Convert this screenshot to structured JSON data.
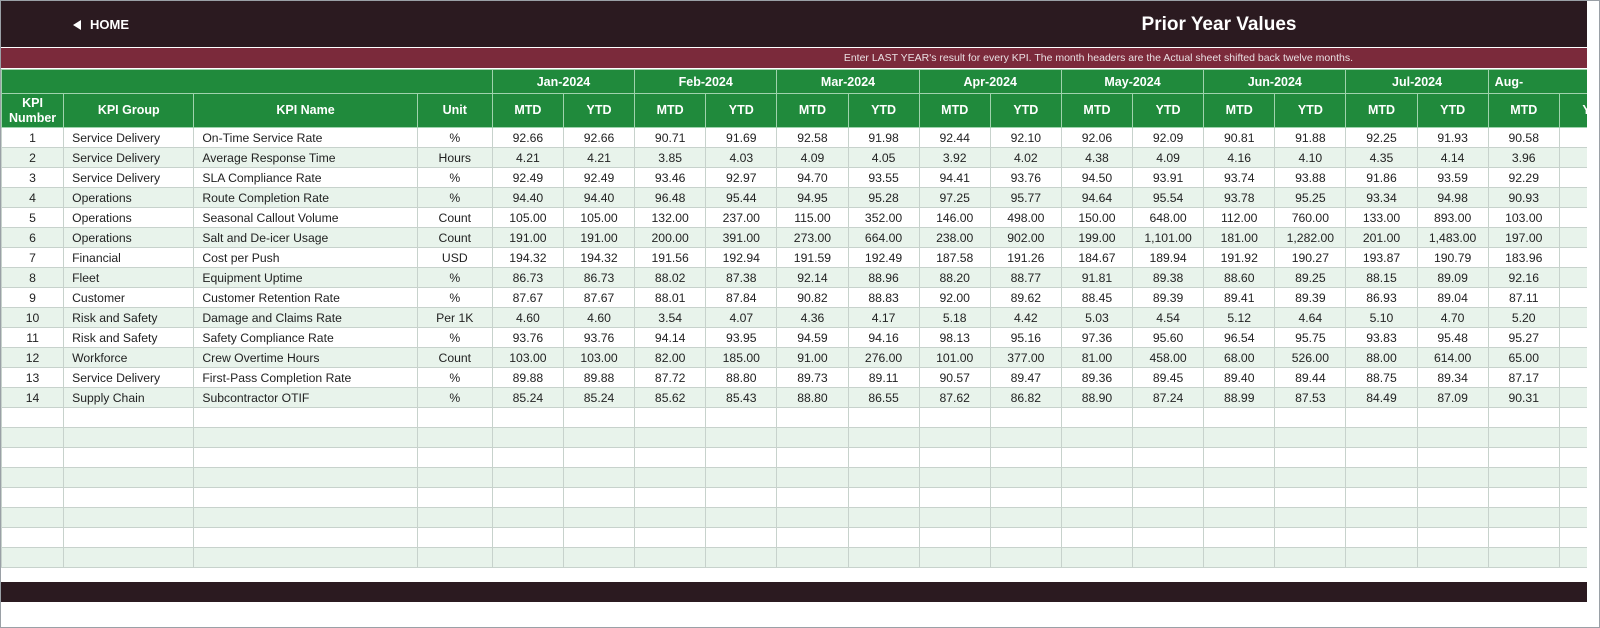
{
  "header": {
    "home_label": "HOME",
    "title": "Prior Year Values"
  },
  "note": "Enter LAST YEAR's result for every KPI. The month headers are the Actual sheet shifted back twelve months.",
  "table": {
    "columns": [
      "KPI Number",
      "KPI Group",
      "KPI Name",
      "Unit"
    ],
    "months": [
      "Jan-2024",
      "Feb-2024",
      "Mar-2024",
      "Apr-2024",
      "May-2024",
      "Jun-2024",
      "Jul-2024",
      "Aug-"
    ],
    "sub_headers": [
      "MTD",
      "YTD"
    ],
    "rows": [
      [
        "1",
        "Service Delivery",
        "On-Time Service Rate",
        "%",
        "92.66",
        "92.66",
        "90.71",
        "91.69",
        "92.58",
        "91.98",
        "92.44",
        "92.10",
        "92.06",
        "92.09",
        "90.81",
        "91.88",
        "92.25",
        "91.93",
        "90.58"
      ],
      [
        "2",
        "Service Delivery",
        "Average Response Time",
        "Hours",
        "4.21",
        "4.21",
        "3.85",
        "4.03",
        "4.09",
        "4.05",
        "3.92",
        "4.02",
        "4.38",
        "4.09",
        "4.16",
        "4.10",
        "4.35",
        "4.14",
        "3.96"
      ],
      [
        "3",
        "Service Delivery",
        "SLA Compliance Rate",
        "%",
        "92.49",
        "92.49",
        "93.46",
        "92.97",
        "94.70",
        "93.55",
        "94.41",
        "93.76",
        "94.50",
        "93.91",
        "93.74",
        "93.88",
        "91.86",
        "93.59",
        "92.29"
      ],
      [
        "4",
        "Operations",
        "Route Completion Rate",
        "%",
        "94.40",
        "94.40",
        "96.48",
        "95.44",
        "94.95",
        "95.28",
        "97.25",
        "95.77",
        "94.64",
        "95.54",
        "93.78",
        "95.25",
        "93.34",
        "94.98",
        "90.93"
      ],
      [
        "5",
        "Operations",
        "Seasonal Callout Volume",
        "Count",
        "105.00",
        "105.00",
        "132.00",
        "237.00",
        "115.00",
        "352.00",
        "146.00",
        "498.00",
        "150.00",
        "648.00",
        "112.00",
        "760.00",
        "133.00",
        "893.00",
        "103.00"
      ],
      [
        "6",
        "Operations",
        "Salt and De-icer Usage",
        "Count",
        "191.00",
        "191.00",
        "200.00",
        "391.00",
        "273.00",
        "664.00",
        "238.00",
        "902.00",
        "199.00",
        "1,101.00",
        "181.00",
        "1,282.00",
        "201.00",
        "1,483.00",
        "197.00"
      ],
      [
        "7",
        "Financial",
        "Cost per Push",
        "USD",
        "194.32",
        "194.32",
        "191.56",
        "192.94",
        "191.59",
        "192.49",
        "187.58",
        "191.26",
        "184.67",
        "189.94",
        "191.92",
        "190.27",
        "193.87",
        "190.79",
        "183.96"
      ],
      [
        "8",
        "Fleet",
        "Equipment Uptime",
        "%",
        "86.73",
        "86.73",
        "88.02",
        "87.38",
        "92.14",
        "88.96",
        "88.20",
        "88.77",
        "91.81",
        "89.38",
        "88.60",
        "89.25",
        "88.15",
        "89.09",
        "92.16"
      ],
      [
        "9",
        "Customer",
        "Customer Retention Rate",
        "%",
        "87.67",
        "87.67",
        "88.01",
        "87.84",
        "90.82",
        "88.83",
        "92.00",
        "89.62",
        "88.45",
        "89.39",
        "89.41",
        "89.39",
        "86.93",
        "89.04",
        "87.11"
      ],
      [
        "10",
        "Risk and Safety",
        "Damage and Claims Rate",
        "Per 1K",
        "4.60",
        "4.60",
        "3.54",
        "4.07",
        "4.36",
        "4.17",
        "5.18",
        "4.42",
        "5.03",
        "4.54",
        "5.12",
        "4.64",
        "5.10",
        "4.70",
        "5.20"
      ],
      [
        "11",
        "Risk and Safety",
        "Safety Compliance Rate",
        "%",
        "93.76",
        "93.76",
        "94.14",
        "93.95",
        "94.59",
        "94.16",
        "98.13",
        "95.16",
        "97.36",
        "95.60",
        "96.54",
        "95.75",
        "93.83",
        "95.48",
        "95.27"
      ],
      [
        "12",
        "Workforce",
        "Crew Overtime Hours",
        "Count",
        "103.00",
        "103.00",
        "82.00",
        "185.00",
        "91.00",
        "276.00",
        "101.00",
        "377.00",
        "81.00",
        "458.00",
        "68.00",
        "526.00",
        "88.00",
        "614.00",
        "65.00"
      ],
      [
        "13",
        "Service Delivery",
        "First-Pass Completion Rate",
        "%",
        "89.88",
        "89.88",
        "87.72",
        "88.80",
        "89.73",
        "89.11",
        "90.57",
        "89.47",
        "89.36",
        "89.45",
        "89.40",
        "89.44",
        "88.75",
        "89.34",
        "87.17"
      ],
      [
        "14",
        "Supply Chain",
        "Subcontractor OTIF",
        "%",
        "85.24",
        "85.24",
        "85.62",
        "85.43",
        "88.80",
        "86.55",
        "87.62",
        "86.82",
        "88.90",
        "87.24",
        "88.99",
        "87.53",
        "84.49",
        "87.09",
        "90.31"
      ]
    ]
  },
  "colors": {
    "header_bg": "#2b1a20",
    "note_bg": "#7b2a3b",
    "table_header_bg": "#208a3c",
    "row_alt_bg": "#e8f3eb"
  }
}
